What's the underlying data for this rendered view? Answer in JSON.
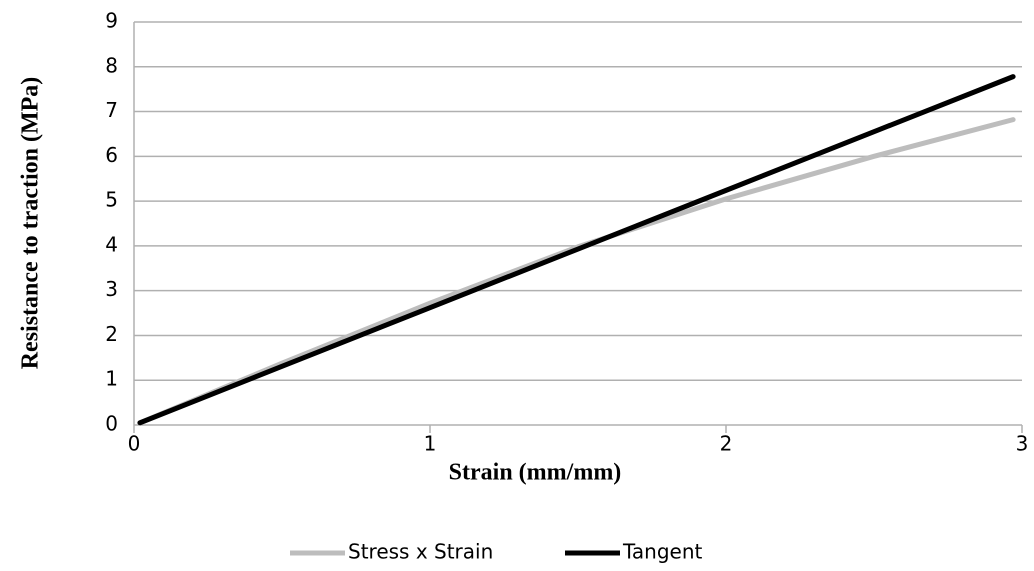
{
  "chart_data": {
    "type": "line",
    "xlabel": "Strain (mm/mm)",
    "ylabel": "Resistance to traction (MPa)",
    "x": [
      0.02,
      0.5,
      1,
      1.5,
      2,
      2.5,
      2.97
    ],
    "series": [
      {
        "name": "Stress x Strain",
        "color": "#bdbdbd",
        "values": [
          0.05,
          1.38,
          2.72,
          3.98,
          5.05,
          6.0,
          6.82
        ]
      },
      {
        "name": "Tangent",
        "color": "#000000",
        "values": [
          0.05,
          1.31,
          2.62,
          3.93,
          5.24,
          6.55,
          7.78
        ]
      }
    ],
    "xlim": [
      0,
      3
    ],
    "xticks": [
      0,
      1,
      2,
      3
    ],
    "ylim": [
      0,
      9
    ],
    "yticks": [
      0,
      1,
      2,
      3,
      4,
      5,
      6,
      7,
      8,
      9
    ],
    "grid": true,
    "legend": "bottom"
  }
}
